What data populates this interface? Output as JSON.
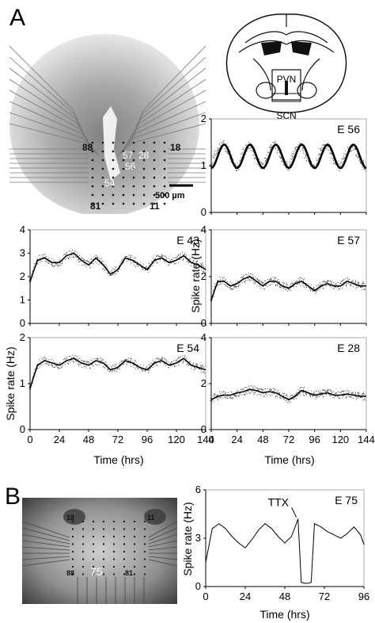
{
  "panels": {
    "a": "A",
    "b": "B"
  },
  "micrograph_a": {
    "electrodes": [
      "88",
      "18",
      "57",
      "28",
      "56",
      "54",
      "81",
      "11"
    ],
    "scale_bar": "500 µm"
  },
  "brain_schematic": {
    "pvn": "PVN",
    "scn": "SCN"
  },
  "micrograph_b": {
    "electrodes": [
      "18",
      "11",
      "88",
      "75",
      "81"
    ]
  },
  "shared_axes": {
    "xlabel": "Time (hrs)",
    "ylabel": "Spike rate (Hz)"
  },
  "chart_data": [
    {
      "type": "scatter",
      "title": "E 56",
      "xlim": [
        0,
        144
      ],
      "ylim": [
        0,
        2
      ],
      "yticks": [
        0,
        1,
        2
      ],
      "xlabel": "",
      "ylabel": "",
      "overlay": "sine",
      "series": [
        {
          "x": [
            0,
            6,
            12,
            18,
            24,
            30,
            36,
            42,
            48,
            54,
            60,
            66,
            72,
            78,
            84,
            90,
            96,
            102,
            108,
            114,
            120,
            126,
            132,
            138,
            144
          ],
          "y": [
            1.0,
            1.35,
            1.45,
            1.2,
            0.95,
            1.3,
            1.45,
            1.15,
            0.95,
            1.35,
            1.45,
            1.1,
            0.95,
            1.35,
            1.4,
            1.1,
            0.95,
            1.35,
            1.4,
            1.1,
            0.95,
            1.3,
            1.4,
            1.1,
            0.95
          ]
        }
      ]
    },
    {
      "type": "line",
      "title": "E 43",
      "xlim": [
        0,
        144
      ],
      "ylim": [
        0,
        4
      ],
      "yticks": [
        0,
        1,
        2,
        3,
        4
      ],
      "xlabel": "",
      "ylabel": "",
      "series": [
        {
          "x": [
            0,
            6,
            12,
            18,
            24,
            30,
            36,
            42,
            48,
            54,
            60,
            66,
            72,
            78,
            84,
            90,
            96,
            102,
            108,
            114,
            120,
            126,
            132,
            138,
            144
          ],
          "y": [
            1.8,
            2.7,
            2.8,
            2.6,
            2.6,
            2.9,
            3.0,
            2.7,
            2.5,
            2.8,
            2.5,
            2.1,
            2.3,
            2.8,
            2.7,
            2.5,
            2.3,
            2.7,
            2.8,
            2.6,
            2.7,
            2.9,
            2.6,
            2.5,
            2.3
          ]
        }
      ]
    },
    {
      "type": "line",
      "title": "E 57",
      "xlim": [
        0,
        144
      ],
      "ylim": [
        0,
        4
      ],
      "yticks": [
        0,
        2,
        4
      ],
      "xlabel": "",
      "ylabel": "Spike rate (Hz)",
      "series": [
        {
          "x": [
            0,
            6,
            12,
            18,
            24,
            30,
            36,
            42,
            48,
            54,
            60,
            66,
            72,
            78,
            84,
            90,
            96,
            102,
            108,
            114,
            120,
            126,
            132,
            138,
            144
          ],
          "y": [
            1.0,
            1.8,
            1.8,
            1.6,
            1.7,
            1.9,
            2.0,
            1.8,
            1.6,
            1.8,
            1.8,
            1.6,
            1.5,
            1.7,
            1.8,
            1.6,
            1.4,
            1.6,
            1.7,
            1.6,
            1.6,
            1.8,
            1.7,
            1.6,
            1.6
          ]
        }
      ]
    },
    {
      "type": "line",
      "title": "E 54",
      "xlim": [
        0,
        144
      ],
      "ylim": [
        0,
        2
      ],
      "yticks": [
        0,
        1,
        2
      ],
      "xticks": [
        0,
        24,
        48,
        72,
        96,
        120,
        144
      ],
      "xlabel": "Time (hrs)",
      "ylabel": "Spike rate (Hz)",
      "series": [
        {
          "x": [
            0,
            6,
            12,
            18,
            24,
            30,
            36,
            42,
            48,
            54,
            60,
            66,
            72,
            78,
            84,
            90,
            96,
            102,
            108,
            114,
            120,
            126,
            132,
            138,
            144
          ],
          "y": [
            0.9,
            1.4,
            1.5,
            1.45,
            1.4,
            1.5,
            1.55,
            1.45,
            1.4,
            1.5,
            1.45,
            1.3,
            1.35,
            1.5,
            1.45,
            1.35,
            1.3,
            1.45,
            1.5,
            1.4,
            1.45,
            1.55,
            1.4,
            1.35,
            1.3
          ]
        }
      ]
    },
    {
      "type": "line",
      "title": "E 28",
      "xlim": [
        0,
        144
      ],
      "ylim": [
        0,
        4
      ],
      "yticks": [
        0,
        2,
        4
      ],
      "xticks": [
        0,
        24,
        48,
        72,
        96,
        120,
        144
      ],
      "xlabel": "Time (hrs)",
      "ylabel": "",
      "series": [
        {
          "x": [
            0,
            6,
            12,
            18,
            24,
            30,
            36,
            42,
            48,
            54,
            60,
            66,
            72,
            78,
            84,
            90,
            96,
            102,
            108,
            114,
            120,
            126,
            132,
            138,
            144
          ],
          "y": [
            1.3,
            1.45,
            1.5,
            1.5,
            1.6,
            1.65,
            1.75,
            1.7,
            1.6,
            1.65,
            1.6,
            1.45,
            1.3,
            1.45,
            1.7,
            1.6,
            1.5,
            1.55,
            1.6,
            1.5,
            1.5,
            1.55,
            1.5,
            1.45,
            1.45
          ]
        }
      ]
    },
    {
      "type": "line",
      "title": "E 75",
      "annotation": "TTX",
      "xlim": [
        0,
        96
      ],
      "ylim": [
        0,
        6
      ],
      "yticks": [
        0,
        3,
        6
      ],
      "xticks": [
        0,
        24,
        48,
        72,
        96
      ],
      "xlabel": "Time (hrs)",
      "ylabel": "Spike rate (Hz)",
      "series": [
        {
          "x": [
            0,
            4,
            8,
            12,
            16,
            20,
            24,
            28,
            32,
            36,
            40,
            44,
            48,
            52,
            55,
            56,
            58,
            60,
            62,
            64,
            66,
            70,
            74,
            78,
            82,
            86,
            90,
            94,
            96
          ],
          "y": [
            1.5,
            3.6,
            3.9,
            3.6,
            3.1,
            2.7,
            2.4,
            2.9,
            3.5,
            3.9,
            3.6,
            3.1,
            2.7,
            3.1,
            3.9,
            4.2,
            0.25,
            0.2,
            0.2,
            0.25,
            3.9,
            3.7,
            3.4,
            3.2,
            3.0,
            3.3,
            3.7,
            3.2,
            2.6
          ]
        }
      ]
    }
  ]
}
